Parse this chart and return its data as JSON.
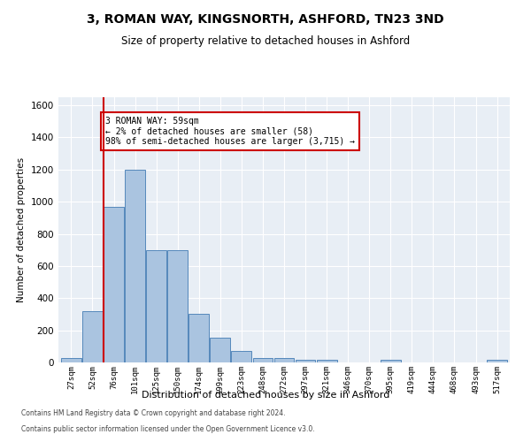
{
  "title": "3, ROMAN WAY, KINGSNORTH, ASHFORD, TN23 3ND",
  "subtitle": "Size of property relative to detached houses in Ashford",
  "xlabel": "Distribution of detached houses by size in Ashford",
  "ylabel": "Number of detached properties",
  "categories": [
    "27sqm",
    "52sqm",
    "76sqm",
    "101sqm",
    "125sqm",
    "150sqm",
    "174sqm",
    "199sqm",
    "223sqm",
    "248sqm",
    "272sqm",
    "297sqm",
    "321sqm",
    "346sqm",
    "370sqm",
    "395sqm",
    "419sqm",
    "444sqm",
    "468sqm",
    "493sqm",
    "517sqm"
  ],
  "values": [
    30,
    320,
    970,
    1200,
    700,
    700,
    305,
    155,
    70,
    30,
    25,
    15,
    15,
    0,
    0,
    15,
    0,
    0,
    0,
    0,
    15
  ],
  "bar_color": "#aac4e0",
  "bar_edge_color": "#5588bb",
  "vline_x": 1.5,
  "vline_color": "#cc0000",
  "annotation_text": "3 ROMAN WAY: 59sqm\n← 2% of detached houses are smaller (58)\n98% of semi-detached houses are larger (3,715) →",
  "annotation_box_color": "#cc0000",
  "ylim": [
    0,
    1650
  ],
  "yticks": [
    0,
    200,
    400,
    600,
    800,
    1000,
    1200,
    1400,
    1600
  ],
  "background_color": "#e8eef5",
  "footer1": "Contains HM Land Registry data © Crown copyright and database right 2024.",
  "footer2": "Contains public sector information licensed under the Open Government Licence v3.0."
}
